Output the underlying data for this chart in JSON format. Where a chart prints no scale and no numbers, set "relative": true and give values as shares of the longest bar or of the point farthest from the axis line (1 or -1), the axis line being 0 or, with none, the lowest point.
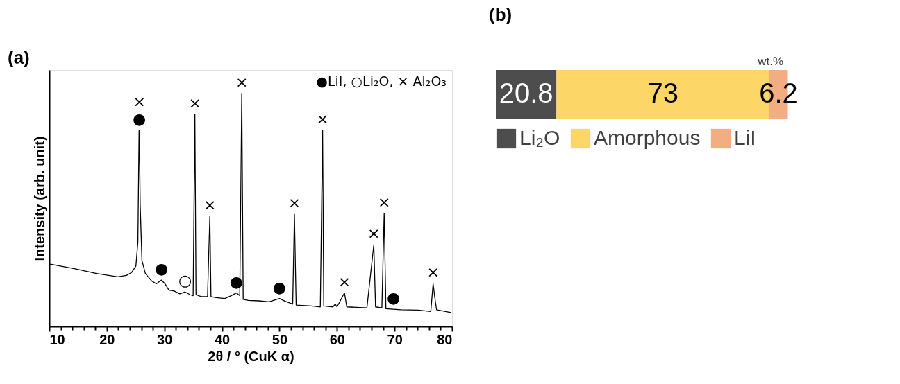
{
  "chart_data": [
    {
      "type": "line",
      "title": "(a)",
      "xlabel": "2θ / ° (CuK α)",
      "ylabel": "Intensity (arb. unit)",
      "relative": true,
      "tick_labels": "x",
      "marker": "none",
      "grid": false,
      "color": "#000000",
      "x": [
        10,
        14.5,
        18.2,
        21.9,
        23.4,
        24.3,
        25.05,
        25.4,
        25.6,
        25.65,
        25.8,
        26.1,
        26.7,
        27.8,
        28.6,
        29.5,
        30.1,
        30.8,
        31.7,
        32.7,
        33.6,
        34.5,
        35.0,
        35.3,
        35.5,
        36.4,
        37.5,
        37.9,
        38.1,
        39.0,
        40.5,
        41.6,
        42.5,
        43.1,
        43.45,
        43.7,
        44.6,
        46.4,
        48.2,
        50.0,
        51.0,
        52.3,
        52.6,
        52.9,
        55.6,
        57.1,
        57.5,
        57.7,
        59.3,
        59.7,
        60.0,
        61.3,
        61.7,
        65.2,
        66.4,
        66.7,
        67.8,
        68.2,
        68.5,
        69.8,
        71.1,
        74.1,
        76.3,
        76.7,
        77.0,
        77.3,
        79.8
      ],
      "values": [
        0.268,
        0.247,
        0.227,
        0.213,
        0.219,
        0.231,
        0.259,
        0.362,
        0.838,
        0.842,
        0.521,
        0.283,
        0.227,
        0.195,
        0.183,
        0.199,
        0.183,
        0.156,
        0.152,
        0.14,
        0.148,
        0.136,
        0.132,
        0.91,
        0.136,
        0.128,
        0.128,
        0.473,
        0.128,
        0.124,
        0.12,
        0.132,
        0.144,
        0.132,
        1.0,
        0.116,
        0.112,
        0.11,
        0.106,
        0.12,
        0.108,
        0.096,
        0.481,
        0.092,
        0.088,
        0.084,
        0.842,
        0.088,
        0.084,
        0.096,
        0.084,
        0.144,
        0.084,
        0.08,
        0.35,
        0.084,
        0.08,
        0.485,
        0.076,
        0.074,
        0.072,
        0.07,
        0.064,
        0.183,
        0.124,
        0.072,
        0.06
      ],
      "xlim": [
        10,
        80
      ],
      "xticks": [
        10,
        {
          "value": 12,
          "label": null
        },
        {
          "value": 14,
          "label": null
        },
        {
          "value": 16,
          "label": null
        },
        {
          "value": 18,
          "label": null
        },
        20,
        {
          "value": 22,
          "label": null
        },
        {
          "value": 24,
          "label": null
        },
        {
          "value": 26,
          "label": null
        },
        {
          "value": 28,
          "label": null
        },
        30,
        {
          "value": 32,
          "label": null
        },
        {
          "value": 34,
          "label": null
        },
        {
          "value": 36,
          "label": null
        },
        {
          "value": 38,
          "label": null
        },
        40,
        {
          "value": 42,
          "label": null
        },
        {
          "value": 44,
          "label": null
        },
        {
          "value": 46,
          "label": null
        },
        {
          "value": 48,
          "label": null
        },
        50,
        {
          "value": 52,
          "label": null
        },
        {
          "value": 54,
          "label": null
        },
        {
          "value": 56,
          "label": null
        },
        {
          "value": 58,
          "label": null
        },
        60,
        {
          "value": 62,
          "label": null
        },
        {
          "value": 64,
          "label": null
        },
        {
          "value": 66,
          "label": null
        },
        {
          "value": 68,
          "label": null
        },
        70,
        {
          "value": 72,
          "label": null
        },
        {
          "value": 74,
          "label": null
        },
        {
          "value": 76,
          "label": null
        },
        {
          "value": 78,
          "label": null
        },
        80
      ],
      "annotations": [
        "●LiI, ○Li₂O, × Al₂O₃",
        {
          "text": "×",
          "x": 25.65,
          "y": 0.842
        },
        {
          "text": "●",
          "x": 25.65,
          "y": 0.842
        },
        {
          "text": "●",
          "x": 29.5,
          "y": 0.199
        },
        {
          "text": "○",
          "x": 33.6,
          "y": 0.148
        },
        {
          "text": "×",
          "x": 35.3,
          "y": 0.91
        },
        {
          "text": "×",
          "x": 37.9,
          "y": 0.473
        },
        {
          "text": "●",
          "x": 42.5,
          "y": 0.144
        },
        {
          "text": "×",
          "x": 43.45,
          "y": 1.0
        },
        {
          "text": "●",
          "x": 50.0,
          "y": 0.12
        },
        {
          "text": "×",
          "x": 52.6,
          "y": 0.481
        },
        {
          "text": "×",
          "x": 57.5,
          "y": 0.842
        },
        {
          "text": "×",
          "x": 61.3,
          "y": 0.144
        },
        {
          "text": "×",
          "x": 66.4,
          "y": 0.35
        },
        {
          "text": "×",
          "x": 68.2,
          "y": 0.485
        },
        {
          "text": "●",
          "x": 69.8,
          "y": 0.074
        },
        {
          "text": "×",
          "x": 76.7,
          "y": 0.183
        }
      ]
    },
    {
      "type": "bar",
      "title": "(b)",
      "orientation": "horizontal",
      "stacked": true,
      "data_labels": true,
      "legend": "bottom",
      "categories": [
        null
      ],
      "series": [
        {
          "name": "Li₂O",
          "color": "#4d4d4d",
          "values": [
            20.8
          ]
        },
        {
          "name": "Amorphous",
          "color": "#fcd667",
          "values": [
            73
          ]
        },
        {
          "name": "LiI",
          "color": "#f2ad82",
          "values": [
            6.2
          ]
        }
      ],
      "annotations": [
        "wt.%"
      ]
    }
  ]
}
